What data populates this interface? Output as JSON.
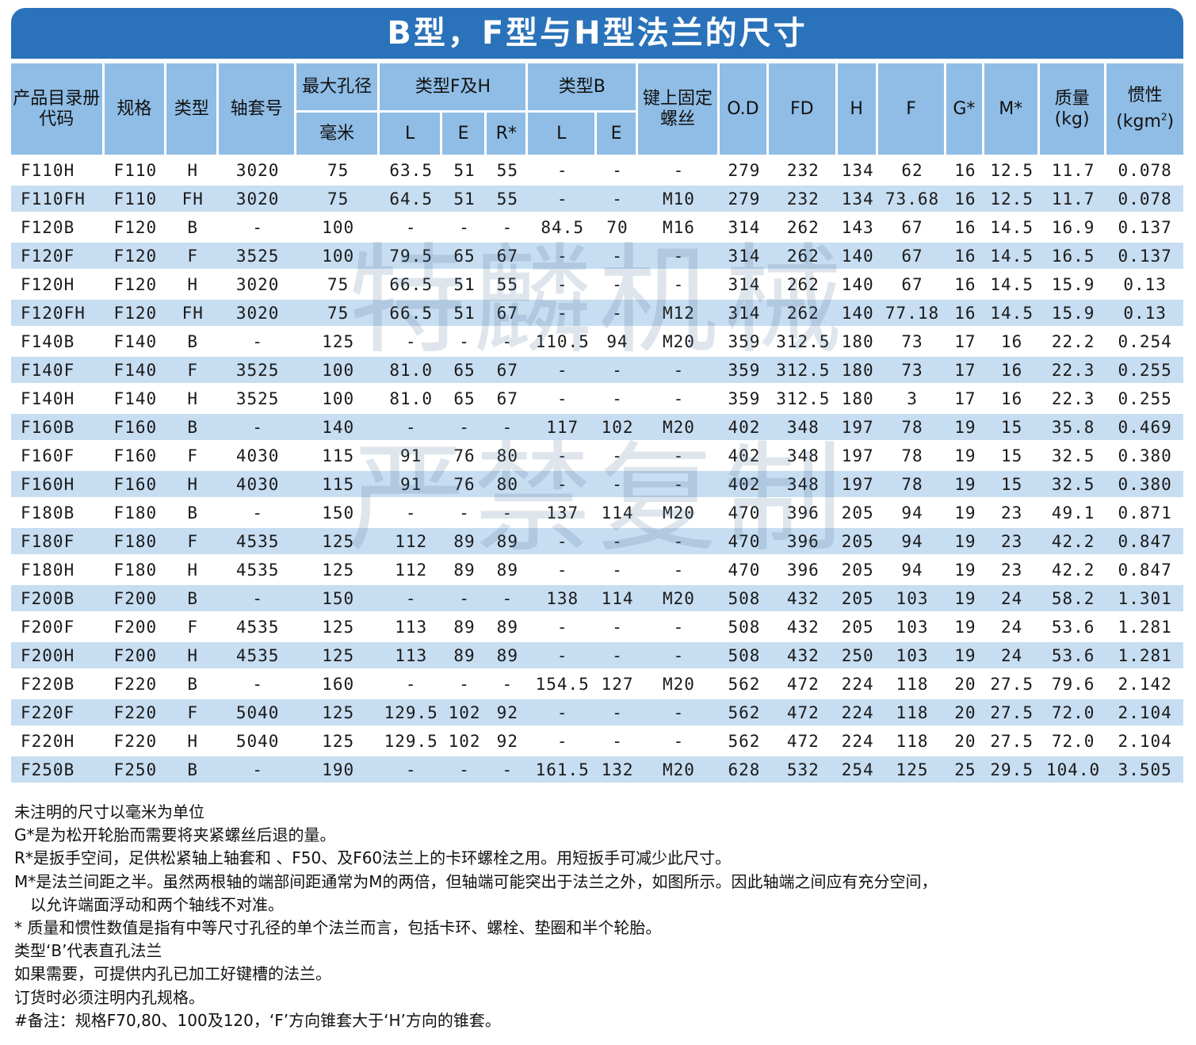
{
  "title": "B型，F型与H型法兰的尺寸",
  "watermark": [
    "特麟机械",
    "严禁复制"
  ],
  "header": {
    "catalog_code": "产品目录册代码",
    "spec": "规格",
    "type": "类型",
    "sleeve": "轴套号",
    "max_bore": "最大孔径",
    "max_bore_unit": "毫米",
    "type_fh": "类型F及H",
    "type_b": "类型B",
    "key_screw": "键上固定螺丝",
    "L": "L",
    "E": "E",
    "R": "R*",
    "od": "O.D",
    "fd": "FD",
    "h": "H",
    "f": "F",
    "g": "G*",
    "m": "M*",
    "mass": "质量",
    "mass_unit": "(kg)",
    "inertia": "惯性",
    "inertia_unit": "(kgm",
    "inertia_sup": "2",
    "inertia_close": ")"
  },
  "rows": [
    [
      "F110H",
      "F110",
      "H",
      "3020",
      "75",
      "63.5",
      "51",
      "55",
      "-",
      "-",
      "-",
      "279",
      "232",
      "134",
      "62",
      "16",
      "12.5",
      "11.7",
      "0.078"
    ],
    [
      "F110FH",
      "F110",
      "FH",
      "3020",
      "75",
      "64.5",
      "51",
      "55",
      "-",
      "-",
      "M10",
      "279",
      "232",
      "134",
      "73.68",
      "16",
      "12.5",
      "11.7",
      "0.078"
    ],
    [
      "F120B",
      "F120",
      "B",
      "-",
      "100",
      "-",
      "-",
      "-",
      "84.5",
      "70",
      "M16",
      "314",
      "262",
      "143",
      "67",
      "16",
      "14.5",
      "16.9",
      "0.137"
    ],
    [
      "F120F",
      "F120",
      "F",
      "3525",
      "100",
      "79.5",
      "65",
      "67",
      "-",
      "-",
      "-",
      "314",
      "262",
      "140",
      "67",
      "16",
      "14.5",
      "16.5",
      "0.137"
    ],
    [
      "F120H",
      "F120",
      "H",
      "3020",
      "75",
      "66.5",
      "51",
      "55",
      "-",
      "-",
      "-",
      "314",
      "262",
      "140",
      "67",
      "16",
      "14.5",
      "15.9",
      "0.13"
    ],
    [
      "F120FH",
      "F120",
      "FH",
      "3020",
      "75",
      "66.5",
      "51",
      "67",
      "-",
      "-",
      "M12",
      "314",
      "262",
      "140",
      "77.18",
      "16",
      "14.5",
      "15.9",
      "0.13"
    ],
    [
      "F140B",
      "F140",
      "B",
      "-",
      "125",
      "-",
      "-",
      "-",
      "110.5",
      "94",
      "M20",
      "359",
      "312.5",
      "180",
      "73",
      "17",
      "16",
      "22.2",
      "0.254"
    ],
    [
      "F140F",
      "F140",
      "F",
      "3525",
      "100",
      "81.0",
      "65",
      "67",
      "-",
      "-",
      "-",
      "359",
      "312.5",
      "180",
      "73",
      "17",
      "16",
      "22.3",
      "0.255"
    ],
    [
      "F140H",
      "F140",
      "H",
      "3525",
      "100",
      "81.0",
      "65",
      "67",
      "-",
      "-",
      "-",
      "359",
      "312.5",
      "180",
      "3",
      "17",
      "16",
      "22.3",
      "0.255"
    ],
    [
      "F160B",
      "F160",
      "B",
      "-",
      "140",
      "-",
      "-",
      "-",
      "117",
      "102",
      "M20",
      "402",
      "348",
      "197",
      "78",
      "19",
      "15",
      "35.8",
      "0.469"
    ],
    [
      "F160F",
      "F160",
      "F",
      "4030",
      "115",
      "91",
      "76",
      "80",
      "-",
      "-",
      "-",
      "402",
      "348",
      "197",
      "78",
      "19",
      "15",
      "32.5",
      "0.380"
    ],
    [
      "F160H",
      "F160",
      "H",
      "4030",
      "115",
      "91",
      "76",
      "80",
      "-",
      "-",
      "-",
      "402",
      "348",
      "197",
      "78",
      "19",
      "15",
      "32.5",
      "0.380"
    ],
    [
      "F180B",
      "F180",
      "B",
      "-",
      "150",
      "-",
      "-",
      "-",
      "137",
      "114",
      "M20",
      "470",
      "396",
      "205",
      "94",
      "19",
      "23",
      "49.1",
      "0.871"
    ],
    [
      "F180F",
      "F180",
      "F",
      "4535",
      "125",
      "112",
      "89",
      "89",
      "-",
      "-",
      "-",
      "470",
      "396",
      "205",
      "94",
      "19",
      "23",
      "42.2",
      "0.847"
    ],
    [
      "F180H",
      "F180",
      "H",
      "4535",
      "125",
      "112",
      "89",
      "89",
      "-",
      "-",
      "-",
      "470",
      "396",
      "205",
      "94",
      "19",
      "23",
      "42.2",
      "0.847"
    ],
    [
      "F200B",
      "F200",
      "B",
      "-",
      "150",
      "-",
      "-",
      "-",
      "138",
      "114",
      "M20",
      "508",
      "432",
      "205",
      "103",
      "19",
      "24",
      "58.2",
      "1.301"
    ],
    [
      "F200F",
      "F200",
      "F",
      "4535",
      "125",
      "113",
      "89",
      "89",
      "-",
      "-",
      "-",
      "508",
      "432",
      "205",
      "103",
      "19",
      "24",
      "53.6",
      "1.281"
    ],
    [
      "F200H",
      "F200",
      "H",
      "4535",
      "125",
      "113",
      "89",
      "89",
      "-",
      "-",
      "-",
      "508",
      "432",
      "250",
      "103",
      "19",
      "24",
      "53.6",
      "1.281"
    ],
    [
      "F220B",
      "F220",
      "B",
      "-",
      "160",
      "-",
      "-",
      "-",
      "154.5",
      "127",
      "M20",
      "562",
      "472",
      "224",
      "118",
      "20",
      "27.5",
      "79.6",
      "2.142"
    ],
    [
      "F220F",
      "F220",
      "F",
      "5040",
      "125",
      "129.5",
      "102",
      "92",
      "-",
      "-",
      "-",
      "562",
      "472",
      "224",
      "118",
      "20",
      "27.5",
      "72.0",
      "2.104"
    ],
    [
      "F220H",
      "F220",
      "H",
      "5040",
      "125",
      "129.5",
      "102",
      "92",
      "-",
      "-",
      "-",
      "562",
      "472",
      "224",
      "118",
      "20",
      "27.5",
      "72.0",
      "2.104"
    ],
    [
      "F250B",
      "F250",
      "B",
      "-",
      "190",
      "-",
      "-",
      "-",
      "161.5",
      "132",
      "M20",
      "628",
      "532",
      "254",
      "125",
      "25",
      "29.5",
      "104.0",
      "3.505"
    ]
  ],
  "notes": [
    "未注明的尺寸以毫米为单位",
    "G*是为松开轮胎而需要将夹紧螺丝后退的量。",
    "R*是扳手空间，足供松紧轴上轴套和 、F50、及F60法兰上的卡环螺栓之用。用短扳手可减少此尺寸。",
    "M*是法兰间距之半。虽然两根轴的端部间距通常为M的两倍，但轴端可能突出于法兰之外，如图所示。因此轴端之间应有充分空间，",
    "以允许端面浮动和两个轴线不对准。",
    "* 质量和惯性数值是指有中等尺寸孔径的单个法兰而言，包括卡环、螺栓、垫圈和半个轮胎。",
    "类型‘B’代表直孔法兰",
    "如果需要，可提供内孔已加工好键槽的法兰。",
    "订货时必须注明内孔规格。",
    "#备注：规格F70,80、100及120，‘F’方向锥套大于‘H’方向的锥套。"
  ]
}
